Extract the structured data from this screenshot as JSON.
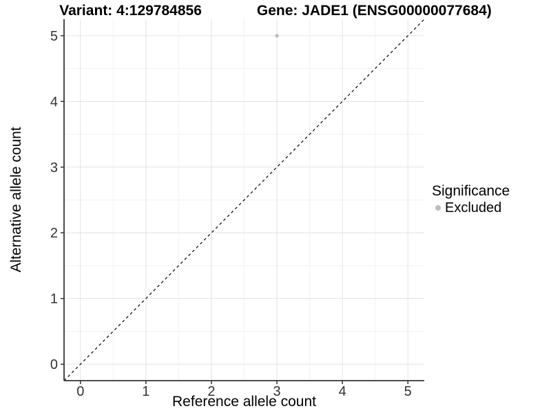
{
  "chart_data": {
    "type": "scatter",
    "title_parts": [
      "Variant: 4:129784856",
      "Gene: JADE1 (ENSG00000077684)"
    ],
    "xlabel": "Reference allele count",
    "ylabel": "Alternative allele count",
    "xlim": [
      -0.25,
      5.25
    ],
    "ylim": [
      -0.25,
      5.25
    ],
    "x_ticks": [
      0,
      1,
      2,
      3,
      4,
      5
    ],
    "y_ticks": [
      0,
      1,
      2,
      3,
      4,
      5
    ],
    "x_minor_ticks": [
      0.5,
      1.5,
      2.5,
      3.5,
      4.5
    ],
    "y_minor_ticks": [
      0.5,
      1.5,
      2.5,
      3.5,
      4.5
    ],
    "grid": "major+minor",
    "identity_line": {
      "style": "dashed",
      "from": [
        -0.25,
        -0.25
      ],
      "to": [
        5.25,
        5.25
      ]
    },
    "series": [
      {
        "name": "Excluded",
        "color": "#bdbdbd",
        "marker": "circle",
        "points": [
          {
            "x": 3,
            "y": 5
          }
        ]
      }
    ],
    "legend": {
      "title": "Significance",
      "position": "right",
      "entries": [
        {
          "label": "Excluded",
          "color": "#bdbdbd"
        }
      ]
    },
    "colors": {
      "background": "#ffffff",
      "grid_major": "#e3e3e3",
      "grid_minor": "#f1f1f1",
      "axis_line": "#333333",
      "tick_mark": "#333333",
      "tick_text": "#333333",
      "identity_line": "#000000"
    }
  }
}
